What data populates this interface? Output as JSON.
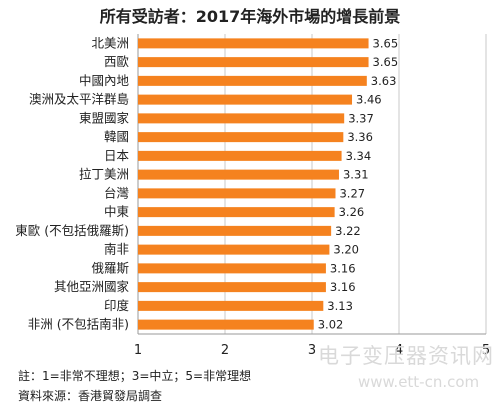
{
  "chart_data": {
    "type": "bar",
    "orientation": "horizontal",
    "title": "所有受訪者：2017年海外市場的增長前景",
    "categories": [
      "北美洲",
      "西歐",
      "中國內地",
      "澳洲及太平洋群島",
      "東盟國家",
      "韓國",
      "日本",
      "拉丁美洲",
      "台灣",
      "中東",
      "東歐 (不包括俄羅斯)",
      "南非",
      "俄羅斯",
      "其他亞洲國家",
      "印度",
      "非洲 (不包括南非)"
    ],
    "values": [
      3.65,
      3.65,
      3.63,
      3.46,
      3.37,
      3.36,
      3.34,
      3.31,
      3.27,
      3.26,
      3.22,
      3.2,
      3.16,
      3.16,
      3.13,
      3.02
    ],
    "value_labels": [
      "3.65",
      "3.65",
      "3.63",
      "3.46",
      "3.37",
      "3.36",
      "3.34",
      "3.31",
      "3.27",
      "3.26",
      "3.22",
      "3.20",
      "3.16",
      "3.16",
      "3.13",
      "3.02"
    ],
    "xlim": [
      1,
      5
    ],
    "xticks": [
      "1",
      "2",
      "3",
      "4",
      "5"
    ],
    "bar_color": "#f5821f",
    "grid": true,
    "legend": "none"
  },
  "notes": {
    "scale": "註：1=非常不理想；3=中立；5=非常理想",
    "source": "資料來源：香港貿發局調查"
  },
  "watermark": {
    "text": "电子变压器资讯网",
    "url": "www.ett-cn.com",
    "color": "#d9d9d9"
  }
}
